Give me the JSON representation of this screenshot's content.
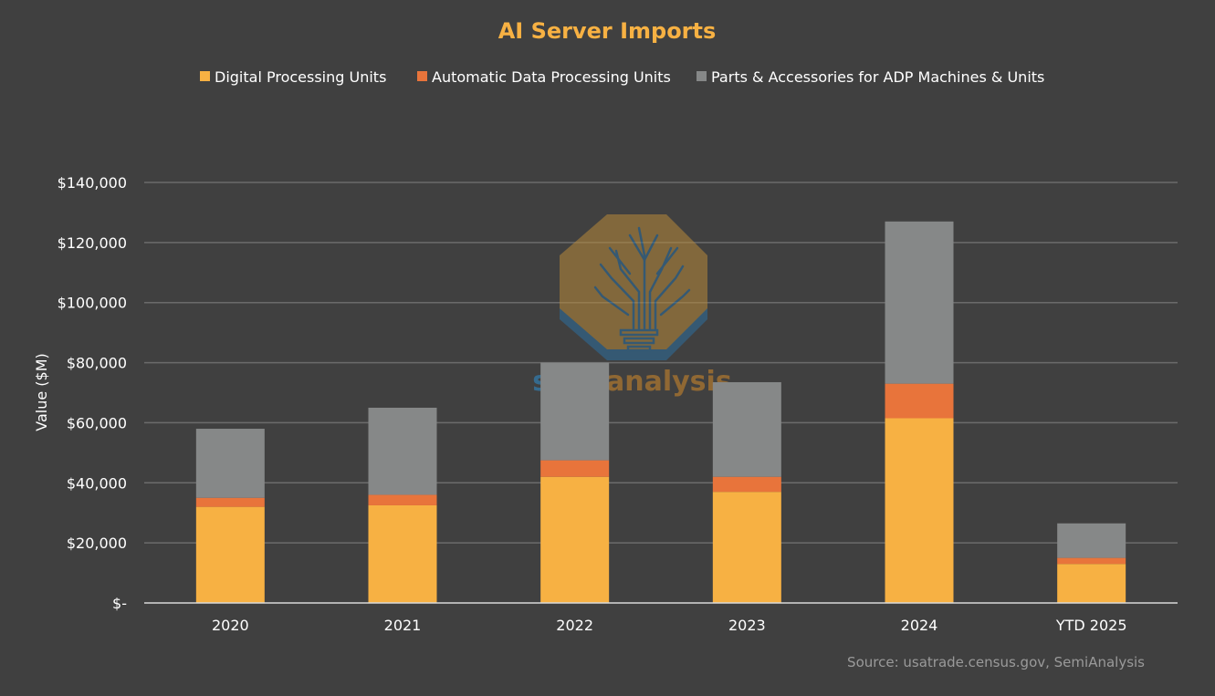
{
  "chart_data": {
    "type": "bar",
    "stacked": true,
    "title": "AI Server Imports",
    "xlabel": "",
    "ylabel": "Value ($M)",
    "ylim": [
      0,
      140000
    ],
    "yticks": [
      0,
      20000,
      40000,
      60000,
      80000,
      100000,
      120000,
      140000
    ],
    "ytick_labels": [
      "$-",
      "$20,000",
      "$40,000",
      "$60,000",
      "$80,000",
      "$100,000",
      "$120,000",
      "$140,000"
    ],
    "grid": true,
    "legend_position": "top",
    "categories": [
      "2020",
      "2021",
      "2022",
      "2023",
      "2024",
      "YTD 2025"
    ],
    "series": [
      {
        "name": "Digital Processing Units",
        "color": "#F7B143",
        "values": [
          32000,
          32500,
          42000,
          37000,
          61500,
          13000
        ]
      },
      {
        "name": "Automatic Data Processing Units",
        "color": "#E8743B",
        "values": [
          3000,
          3500,
          5500,
          5000,
          11500,
          2000
        ]
      },
      {
        "name": "Parts & Accessories for ADP Machines & Units",
        "color": "#868888",
        "values": [
          23000,
          29000,
          32500,
          31500,
          54000,
          11500
        ]
      }
    ],
    "source": "Source: usatrade.census.gov, SemiAnalysis"
  },
  "watermark": {
    "text_left": "semi",
    "text_right": "analysis"
  },
  "colors": {
    "background": "#404040",
    "title": "#F7B143",
    "text": "#FFFFFF",
    "grid": "#6B6B6B",
    "axis": "#D9D9D9",
    "source": "#9A9A9A"
  }
}
